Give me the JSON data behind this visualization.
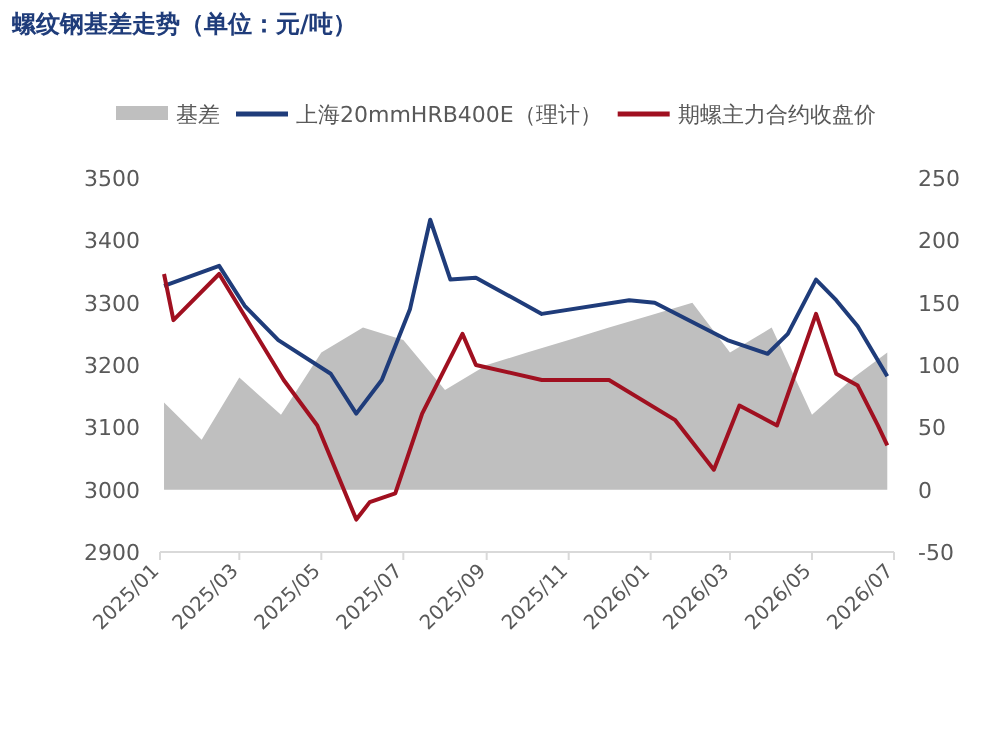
{
  "chart_data": {
    "type": "line",
    "title": "螺纹钢基差走势（单位：元/吨）",
    "legend": "top",
    "xlim": [
      "2025-01-01",
      "2026-07-01"
    ],
    "xticks": [
      {
        "value": "2025-01-01",
        "label": "2025/01"
      },
      {
        "value": "2025-03-01",
        "label": "2025/03"
      },
      {
        "value": "2025-05-01",
        "label": "2025/05"
      },
      {
        "value": "2025-07-01",
        "label": "2025/07"
      },
      {
        "value": "2025-09-01",
        "label": "2025/09"
      },
      {
        "value": "2025-11-01",
        "label": "2025/11"
      },
      {
        "value": "2026-01-01",
        "label": "2026/01"
      },
      {
        "value": "2026-03-01",
        "label": "2026/03"
      },
      {
        "value": "2026-05-01",
        "label": "2026/05"
      },
      {
        "value": "2026-07-01",
        "label": "2026/07"
      }
    ],
    "ylim": [
      2900,
      3500
    ],
    "yticks": [
      2900,
      3000,
      3100,
      3200,
      3300,
      3400,
      3500
    ],
    "y2lim": [
      -50,
      250
    ],
    "y2ticks": [
      -50,
      0,
      50,
      100,
      150,
      200,
      250
    ],
    "series": [
      {
        "name": "基差",
        "type": "area",
        "axis": "y2",
        "color": "#bfbfbf",
        "x": [
          "2025-01-04",
          "2025-02-01",
          "2025-03-01",
          "2025-04-01",
          "2025-05-01",
          "2025-06-01",
          "2025-07-01",
          "2025-08-01",
          "2025-09-01",
          "2025-10-01",
          "2025-11-01",
          "2025-12-01",
          "2026-01-01",
          "2026-02-01",
          "2026-03-01",
          "2026-04-01",
          "2026-05-01",
          "2026-06-01",
          "2026-06-26"
        ],
        "values": [
          70,
          40,
          90,
          60,
          110,
          130,
          120,
          80,
          100,
          110,
          120,
          130,
          140,
          150,
          110,
          130,
          60,
          90,
          110
        ]
      },
      {
        "name": "上海20mmHRB400E（理计）",
        "color": "#1f3c7a",
        "x": [
          "2025-01-04",
          "2025-02-14",
          "2025-03-05",
          "2025-03-30",
          "2025-05-08",
          "2025-05-27",
          "2025-06-15",
          "2025-07-06",
          "2025-07-21",
          "2025-08-05",
          "2025-08-24",
          "2025-10-12",
          "2025-12-16",
          "2026-01-04",
          "2026-02-27",
          "2026-03-29",
          "2026-04-13",
          "2026-05-04",
          "2026-05-19",
          "2026-06-04",
          "2026-06-26"
        ],
        "values": [
          3327,
          3359,
          3295,
          3240,
          3186,
          3122,
          3176,
          3290,
          3433,
          3337,
          3340,
          3282,
          3304,
          3300,
          3240,
          3218,
          3250,
          3337,
          3304,
          3262,
          3182
        ]
      },
      {
        "name": "期螺主力合约收盘价",
        "color": "#a01020",
        "x": [
          "2025-01-04",
          "2025-01-11",
          "2025-02-14",
          "2025-04-03",
          "2025-04-28",
          "2025-05-27",
          "2025-06-06",
          "2025-06-25",
          "2025-07-15",
          "2025-08-14",
          "2025-08-24",
          "2025-10-12",
          "2025-12-01",
          "2026-01-19",
          "2026-02-17",
          "2026-03-08",
          "2026-04-05",
          "2026-05-04",
          "2026-05-19",
          "2026-06-04",
          "2026-06-19",
          "2026-06-26"
        ],
        "values": [
          3346,
          3272,
          3346,
          3176,
          3103,
          2952,
          2980,
          2994,
          3122,
          3250,
          3200,
          3176,
          3176,
          3112,
          3032,
          3135,
          3103,
          3282,
          3186,
          3167,
          3103,
          3071
        ]
      }
    ]
  }
}
